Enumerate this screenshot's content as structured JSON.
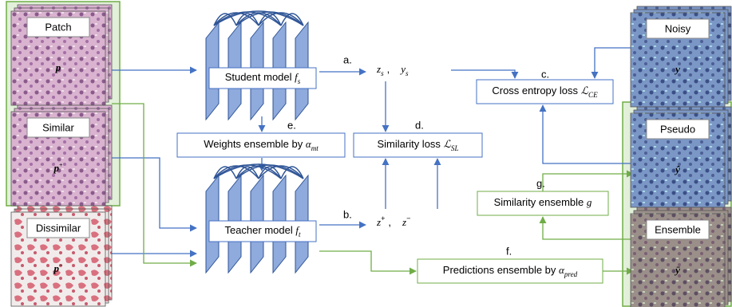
{
  "patches": [
    {
      "label": "Patch",
      "symbol": "p"
    },
    {
      "label": "Similar",
      "symbol": "p",
      "sup": "+"
    },
    {
      "label": "Dissimilar",
      "symbol": "p",
      "sup": "−"
    }
  ],
  "outputs": [
    {
      "label": "Noisy",
      "symbol": "y"
    },
    {
      "label": "Pseudo",
      "symbol": "ŷ"
    },
    {
      "label": "Ensemble",
      "symbol": "ȳ"
    }
  ],
  "models": [
    {
      "label": "Student model ",
      "math": "f",
      "sub": "s"
    },
    {
      "label": "Teacher model ",
      "math": "f",
      "sub": "t"
    }
  ],
  "boxes": [
    {
      "step": "e.",
      "label": "Weights ensemble by ",
      "math": "α",
      "sub": "mt"
    },
    {
      "step": "d.",
      "label": "Similarity loss ",
      "math": "ℒ",
      "sub": "SL"
    },
    {
      "step": "c.",
      "label": "Cross entropy loss ",
      "math": "ℒ",
      "sub": "CE"
    },
    {
      "step": "g.",
      "label": "Similarity ensemble ",
      "math": "g"
    },
    {
      "step": "f.",
      "label": "Predictions ensemble by ",
      "math": "α",
      "sub": "pred"
    }
  ],
  "embeddings": [
    {
      "step": "a.",
      "separator": ",",
      "terms": [
        {
          "math": "z",
          "sub": "s"
        },
        {
          "math": "y",
          "sub": "s"
        }
      ]
    },
    {
      "step": "b.",
      "separator": ",",
      "terms": [
        {
          "math": "z",
          "sup": "+"
        },
        {
          "math": "z",
          "sup": "−"
        }
      ]
    }
  ]
}
